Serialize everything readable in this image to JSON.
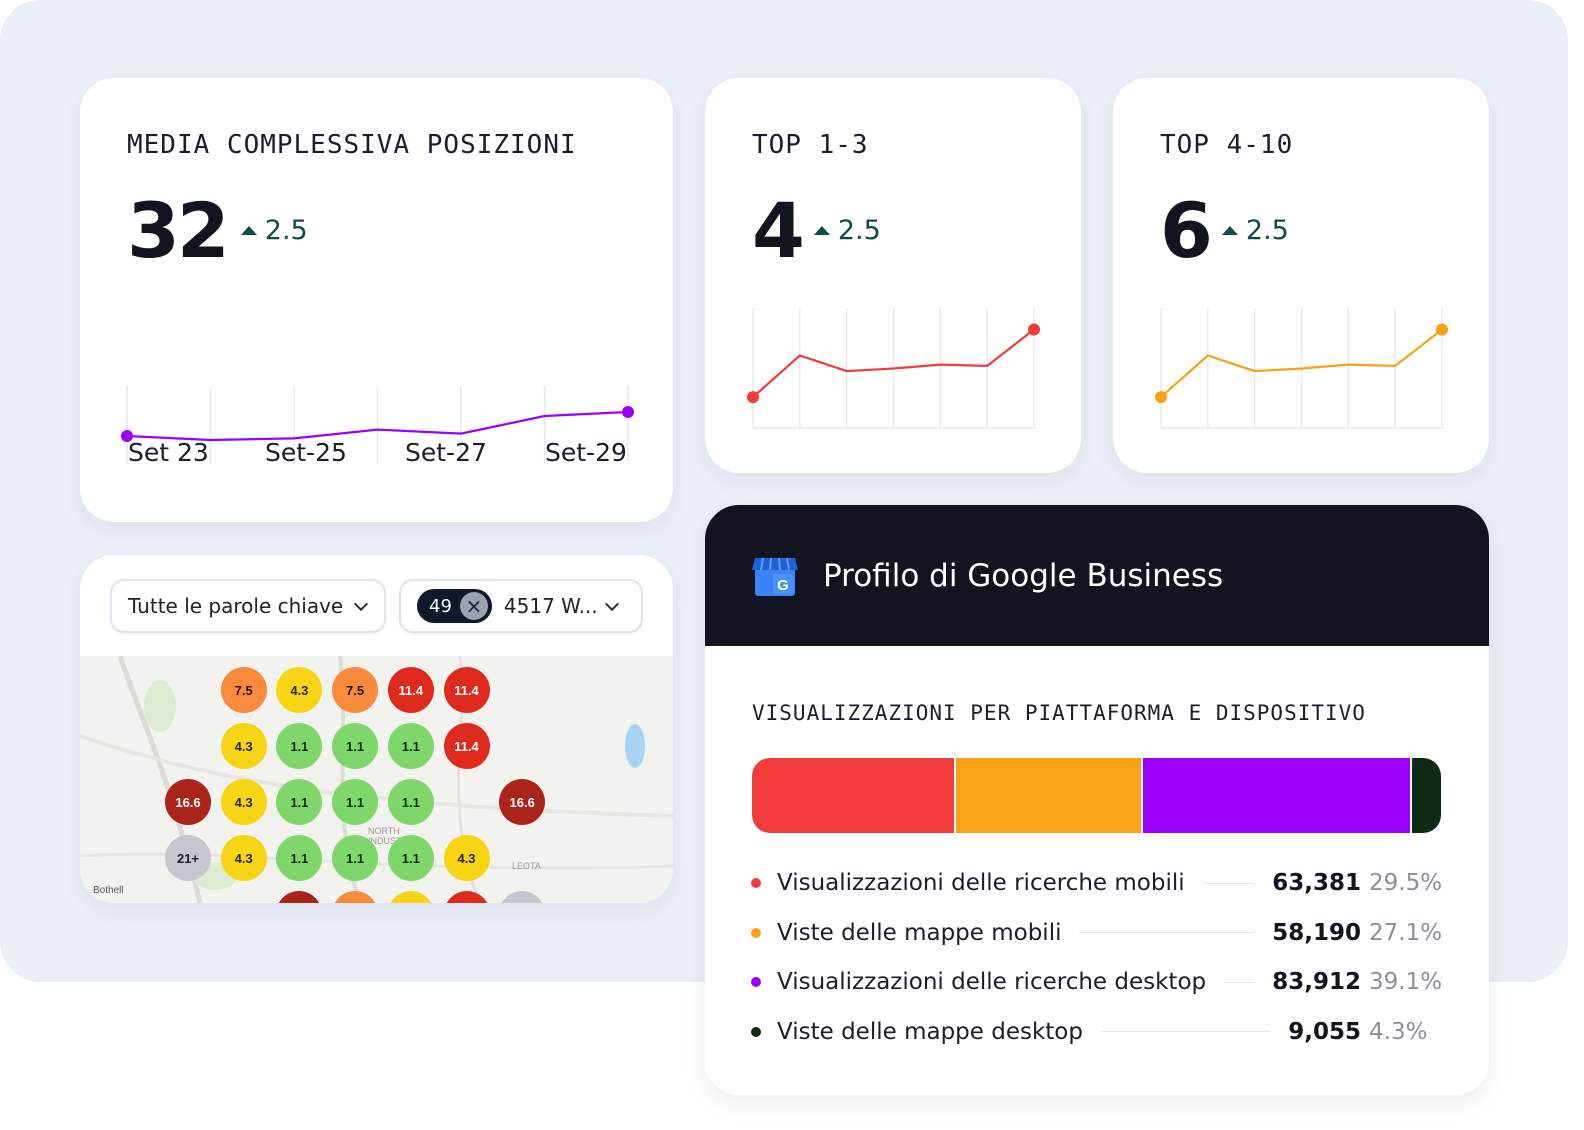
{
  "colors": {
    "purple": "#9b00ff",
    "red": "#f23c3c",
    "orange": "#f9a114",
    "dark_green": "#0f2a14",
    "delta": "#0e4d46"
  },
  "overall": {
    "title": "MEDIA COMPLESSIVA POSIZIONI",
    "value": "32",
    "delta": "2.5",
    "x_ticks": [
      "Set 23",
      "Set-25",
      "Set-27",
      "Set-29"
    ]
  },
  "top13": {
    "title": "TOP 1-3",
    "value": "4",
    "delta": "2.5"
  },
  "top410": {
    "title": "TOP 4-10",
    "value": "6",
    "delta": "2.5"
  },
  "chart_data": [
    {
      "type": "line",
      "title": "MEDIA COMPLESSIVA POSIZIONI",
      "x_ticks": [
        "Set 23",
        "Set-25",
        "Set-27",
        "Set-29"
      ],
      "series": [
        {
          "values": [
            40,
            35,
            37,
            48,
            43,
            65,
            70
          ]
        }
      ],
      "ylim": [
        0,
        100
      ],
      "grid": true
    },
    {
      "type": "line",
      "title": "TOP 1-3",
      "series": [
        {
          "values": [
            33,
            65,
            53,
            55,
            58,
            57,
            85
          ]
        }
      ],
      "ylim": [
        0,
        100
      ],
      "grid": true
    },
    {
      "type": "line",
      "title": "TOP 4-10",
      "series": [
        {
          "values": [
            33,
            65,
            53,
            55,
            58,
            57,
            85
          ]
        }
      ],
      "ylim": [
        0,
        100
      ],
      "grid": true
    },
    {
      "type": "bar",
      "title": "VISUALIZZAZIONI PER PIATTAFORMA E DISPOSITIVO",
      "categories": [
        "Visualizzazioni delle ricerche mobili",
        "Viste delle mappe mobili",
        "Visualizzazioni delle ricerche desktop",
        "Viste delle mappe desktop"
      ],
      "values": [
        63381,
        58190,
        83912,
        9055
      ],
      "percent": [
        29.5,
        27.1,
        39.1,
        4.3
      ]
    }
  ],
  "map": {
    "keyword_select": "Tutte le parole chiave",
    "count_badge": "49",
    "location_select": "4517 W...",
    "labels": [
      "Bothell",
      "NORTH",
      "INDUSTRIAL",
      "LEOTA"
    ],
    "dots": [
      {
        "row": 0,
        "col": 1,
        "label": "7.5",
        "tone": "orange"
      },
      {
        "row": 0,
        "col": 2,
        "label": "4.3",
        "tone": "yellow"
      },
      {
        "row": 0,
        "col": 3,
        "label": "7.5",
        "tone": "orange"
      },
      {
        "row": 0,
        "col": 4,
        "label": "11.4",
        "tone": "red"
      },
      {
        "row": 0,
        "col": 5,
        "label": "11.4",
        "tone": "red"
      },
      {
        "row": 1,
        "col": 1,
        "label": "4.3",
        "tone": "yellow"
      },
      {
        "row": 1,
        "col": 2,
        "label": "1.1",
        "tone": "green"
      },
      {
        "row": 1,
        "col": 3,
        "label": "1.1",
        "tone": "green"
      },
      {
        "row": 1,
        "col": 4,
        "label": "1.1",
        "tone": "green"
      },
      {
        "row": 1,
        "col": 5,
        "label": "11.4",
        "tone": "red"
      },
      {
        "row": 2,
        "col": 0,
        "label": "16.6",
        "tone": "darkred"
      },
      {
        "row": 2,
        "col": 1,
        "label": "4.3",
        "tone": "yellow"
      },
      {
        "row": 2,
        "col": 2,
        "label": "1.1",
        "tone": "green"
      },
      {
        "row": 2,
        "col": 3,
        "label": "1.1",
        "tone": "green"
      },
      {
        "row": 2,
        "col": 4,
        "label": "1.1",
        "tone": "green"
      },
      {
        "row": 2,
        "col": 6,
        "label": "16.6",
        "tone": "darkred"
      },
      {
        "row": 3,
        "col": 0,
        "label": "21+",
        "tone": "gray"
      },
      {
        "row": 3,
        "col": 1,
        "label": "4.3",
        "tone": "yellow"
      },
      {
        "row": 3,
        "col": 2,
        "label": "1.1",
        "tone": "green"
      },
      {
        "row": 3,
        "col": 3,
        "label": "1.1",
        "tone": "green"
      },
      {
        "row": 3,
        "col": 4,
        "label": "1.1",
        "tone": "green"
      },
      {
        "row": 3,
        "col": 5,
        "label": "4.3",
        "tone": "yellow"
      },
      {
        "row": 4,
        "col": 2,
        "label": "",
        "tone": "darkred"
      },
      {
        "row": 4,
        "col": 3,
        "label": "",
        "tone": "orange"
      },
      {
        "row": 4,
        "col": 4,
        "label": "",
        "tone": "yellow"
      },
      {
        "row": 4,
        "col": 5,
        "label": "",
        "tone": "red"
      },
      {
        "row": 4,
        "col": 6,
        "label": "",
        "tone": "gray"
      }
    ],
    "tones": {
      "orange": {
        "bg": "#f98a3c",
        "fg": "#2a1400"
      },
      "yellow": {
        "bg": "#f8d514",
        "fg": "#2a2400"
      },
      "red": {
        "bg": "#df2a1e",
        "fg": "#ffffff"
      },
      "darkred": {
        "bg": "#a92419",
        "fg": "#ffffff"
      },
      "green": {
        "bg": "#7fd66b",
        "fg": "#10300a"
      },
      "gray": {
        "bg": "#c4c7ce",
        "fg": "#1a1d2b"
      }
    }
  },
  "gbp": {
    "title": "Profilo di Google Business",
    "section_title": "VISUALIZZAZIONI PER PIATTAFORMA E DISPOSITIVO",
    "items": [
      {
        "label": "Visualizzazioni delle ricerche mobili",
        "value": "63,381",
        "pct": "29.5%",
        "color": "#f23c3c"
      },
      {
        "label": "Viste delle mappe mobili",
        "value": "58,190",
        "pct": "27.1%",
        "color": "#f9a114"
      },
      {
        "label": "Visualizzazioni delle ricerche desktop",
        "value": "83,912",
        "pct": "39.1%",
        "color": "#9b00ff"
      },
      {
        "label": "Viste delle mappe desktop",
        "value": "9,055",
        "pct": "4.3%",
        "color": "#0f2a14"
      }
    ]
  }
}
